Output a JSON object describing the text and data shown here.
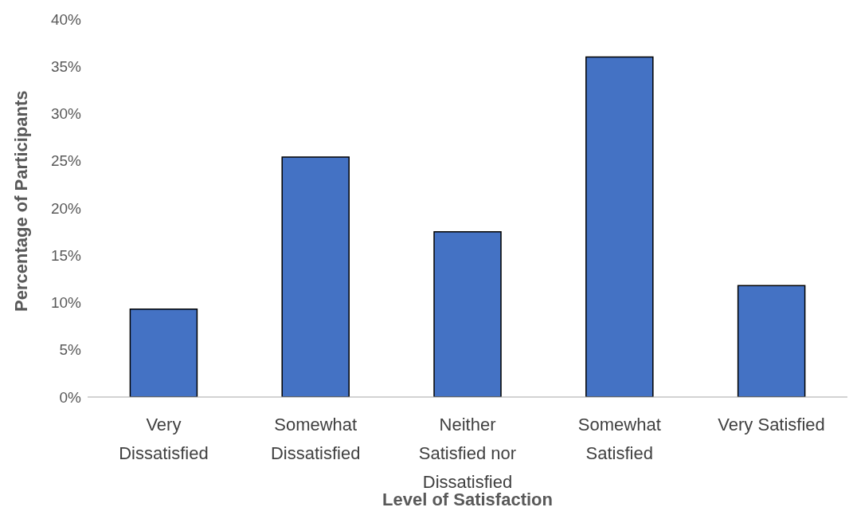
{
  "chart_data": {
    "type": "bar",
    "xlabel": "Level of Satisfaction",
    "ylabel": "Percentage of Participants",
    "categories": [
      "Very Dissatisfied",
      "Somewhat Dissatisfied",
      "Neither Satisfied nor Dissatisfied",
      "Somewhat Satisfied",
      "Very Satisfied"
    ],
    "values": [
      9.3,
      25.4,
      17.5,
      36.0,
      11.8
    ],
    "color": "#4472c4",
    "ylim": [
      0,
      40
    ],
    "yticks": [
      {
        "value": 0,
        "label": "0%"
      },
      {
        "value": 5,
        "label": "5%"
      },
      {
        "value": 10,
        "label": "10%"
      },
      {
        "value": 15,
        "label": "15%"
      },
      {
        "value": 20,
        "label": "20%"
      },
      {
        "value": 25,
        "label": "25%"
      },
      {
        "value": 30,
        "label": "30%"
      },
      {
        "value": 35,
        "label": "35%"
      },
      {
        "value": 40,
        "label": "40%"
      }
    ],
    "grid": false,
    "legend": false
  }
}
